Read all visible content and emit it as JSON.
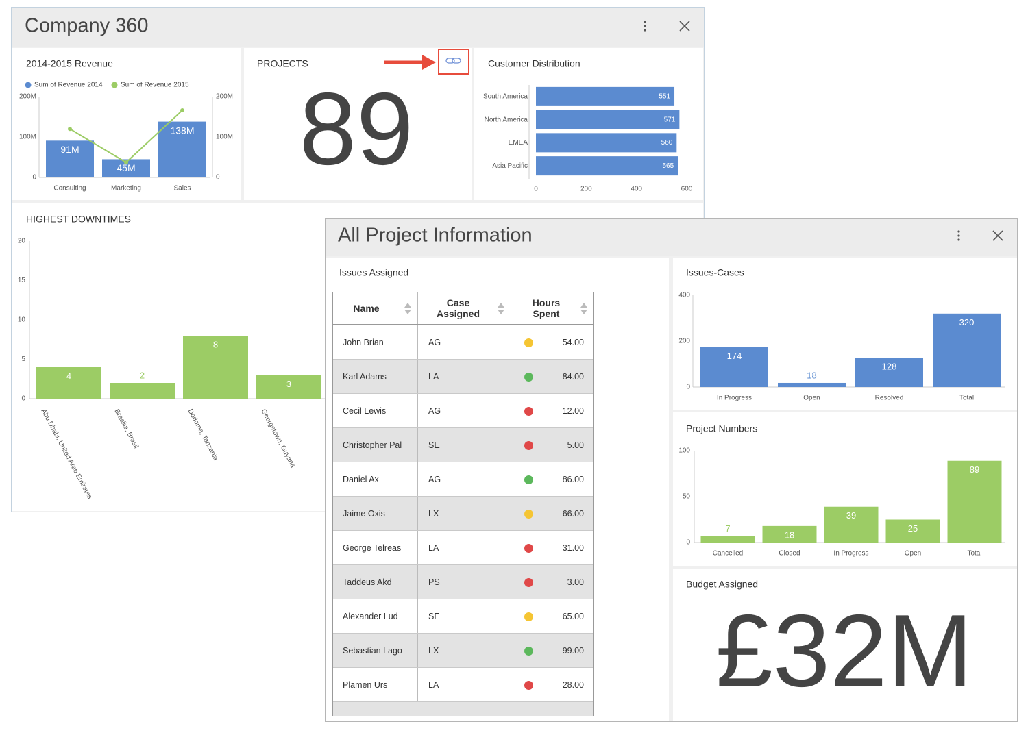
{
  "windows": [
    {
      "title": "Company 360"
    },
    {
      "title": "All Project Information"
    }
  ],
  "kpis": [
    {
      "title": "PROJECTS",
      "value": 89
    },
    {
      "title": "Budget Assigned",
      "value": "£32M"
    }
  ],
  "chart_data": [
    {
      "type": "bar",
      "title": "2014-2015 Revenue",
      "categories": [
        "Consulting",
        "Marketing",
        "Sales"
      ],
      "series": [
        {
          "name": "Sum of Revenue 2014",
          "color": "#5b8bd0",
          "values": [
            91000000,
            45000000,
            138000000
          ],
          "value_labels": [
            "91M",
            "45M",
            "138M"
          ]
        },
        {
          "name": "Sum of Revenue 2015",
          "type": "line",
          "axis": "y2",
          "color": "#9ccc65",
          "values": [
            120000000,
            37000000,
            166000000
          ]
        }
      ],
      "ylim": [
        0,
        200000000
      ],
      "yticks": [
        0,
        {
          "value": 100000000,
          "label": "100M"
        },
        {
          "value": 200000000,
          "label": "200M"
        }
      ],
      "y2lim": [
        0,
        200000000
      ],
      "y2ticks": [
        0,
        {
          "value": 100000000,
          "label": "100M"
        },
        {
          "value": 200000000,
          "label": "200M"
        }
      ],
      "legend": "top-left"
    },
    {
      "type": "bar",
      "horizontal": true,
      "title": "Customer Distribution",
      "categories": [
        "South America",
        "North America",
        "EMEA",
        "Asia Pacific"
      ],
      "values": [
        551,
        571,
        560,
        565
      ],
      "color": "#5b8bd0",
      "xlim": [
        0,
        600
      ],
      "xticks": [
        0,
        200,
        400,
        600
      ]
    },
    {
      "type": "bar",
      "title": "HIGHEST DOWNTIMES",
      "categories": [
        "Abu Dhabi, United Arab Emirates",
        "Brasilia, Brasil",
        "Dodoma, Tanzania",
        "Georgetown, Guyana"
      ],
      "values": [
        4,
        2,
        8,
        3
      ],
      "color": "#9ccc65",
      "ylim": [
        0,
        20
      ],
      "yticks": [
        0,
        5,
        10,
        15,
        20
      ]
    },
    {
      "type": "bar",
      "title": "Issues-Cases",
      "categories": [
        "In Progress",
        "Open",
        "Resolved",
        "Total"
      ],
      "values": [
        174,
        18,
        128,
        320
      ],
      "color": "#5b8bd0",
      "ylim": [
        0,
        400
      ],
      "yticks": [
        0,
        200,
        400
      ]
    },
    {
      "type": "bar",
      "title": "Project Numbers",
      "categories": [
        "Cancelled",
        "Closed",
        "In Progress",
        "Open",
        "Total"
      ],
      "values": [
        7,
        18,
        39,
        25,
        89
      ],
      "color": "#9ccc65",
      "ylim": [
        0,
        100
      ],
      "yticks": [
        0,
        50,
        100
      ]
    }
  ],
  "table": {
    "title": "Issues Assigned",
    "columns": [
      "Name",
      "Case Assigned",
      "Hours Spent"
    ],
    "rows": [
      {
        "name": "John Brian",
        "case": "AG",
        "status": "#f5c533",
        "hours": "54.00"
      },
      {
        "name": "Karl Adams",
        "case": "LA",
        "status": "#5cb85c",
        "hours": "84.00"
      },
      {
        "name": "Cecil Lewis",
        "case": "AG",
        "status": "#e04848",
        "hours": "12.00"
      },
      {
        "name": "Christopher Pal",
        "case": "SE",
        "status": "#e04848",
        "hours": "5.00"
      },
      {
        "name": "Daniel Ax",
        "case": "AG",
        "status": "#5cb85c",
        "hours": "86.00"
      },
      {
        "name": "Jaime Oxis",
        "case": "LX",
        "status": "#f5c533",
        "hours": "66.00"
      },
      {
        "name": "George Telreas",
        "case": "LA",
        "status": "#e04848",
        "hours": "31.00"
      },
      {
        "name": "Taddeus Akd",
        "case": "PS",
        "status": "#e04848",
        "hours": "3.00"
      },
      {
        "name": "Alexander Lud",
        "case": "SE",
        "status": "#f5c533",
        "hours": "65.00"
      },
      {
        "name": "Sebastian Lago",
        "case": "LX",
        "status": "#5cb85c",
        "hours": "99.00"
      },
      {
        "name": "Plamen Urs",
        "case": "LA",
        "status": "#e04848",
        "hours": "28.00"
      }
    ]
  }
}
